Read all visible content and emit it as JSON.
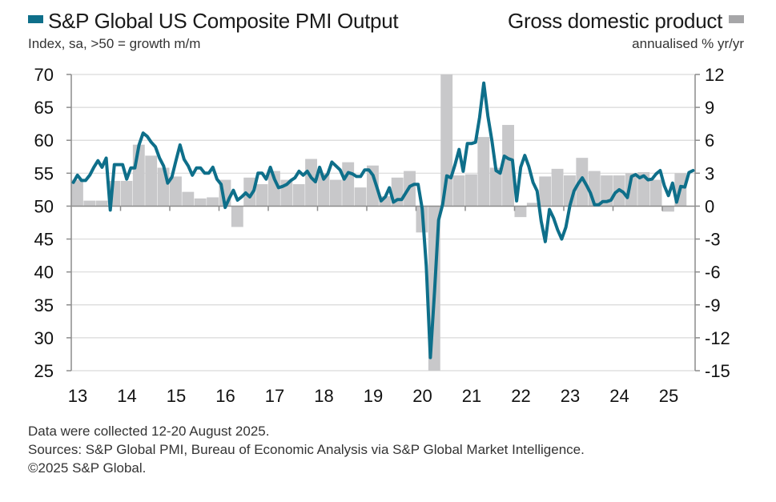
{
  "legend": {
    "pmi_label": "S&P Global US Composite PMI Output",
    "pmi_subtitle": "Index, sa, >50 = growth m/m",
    "gdp_label": "Gross domestic product",
    "gdp_subtitle": "annualised % yr/yr"
  },
  "footer": {
    "line1": "Data were collected 12-20 August 2025.",
    "line2": "Sources: S&P Global PMI, Bureau of Economic Analysis via S&P Global Market Intelligence.",
    "line3": "©2025 S&P Global."
  },
  "colors": {
    "pmi_line": "#0e6f8a",
    "gdp_bar": "#c8c8ca",
    "gdp_legend": "#a6a6a8",
    "grid": "#d9d9d9",
    "axis": "#8c8c8c"
  },
  "chart_data": {
    "type": "line+bar",
    "title": "S&P Global US Composite PMI Output vs Gross domestic product",
    "xlabel": "",
    "x_ticks": [
      "13",
      "14",
      "15",
      "16",
      "17",
      "18",
      "19",
      "20",
      "21",
      "22",
      "23",
      "24",
      "25"
    ],
    "x_range": [
      "2013-01",
      "2025-08"
    ],
    "grid": true,
    "legend_placement": "top",
    "left_axis": {
      "label": "Index, sa, >50 = growth m/m",
      "ylim": [
        25,
        70
      ],
      "ticks": [
        70,
        65,
        60,
        55,
        50,
        45,
        40,
        35,
        30,
        25
      ]
    },
    "right_axis": {
      "label": "annualised % yr/yr",
      "ylim": [
        -15,
        12
      ],
      "ticks": [
        12,
        9,
        6,
        3,
        0,
        -3,
        -6,
        -9,
        -12,
        -15
      ]
    },
    "series": [
      {
        "name": "S&P Global US Composite PMI Output",
        "type": "line",
        "axis": "left",
        "frequency": "monthly",
        "start": "2013-01",
        "values": [
          53.6,
          54.7,
          53.9,
          53.9,
          54.7,
          55.9,
          56.9,
          55.9,
          57.3,
          49.4,
          56.3,
          56.3,
          56.3,
          54.1,
          55.8,
          55.8,
          59.3,
          61.1,
          60.6,
          59.7,
          59.0,
          57.3,
          56.1,
          53.5,
          54.4,
          56.9,
          59.3,
          57.1,
          56.1,
          54.7,
          55.8,
          55.8,
          55.0,
          55.0,
          55.9,
          54.1,
          53.3,
          49.8,
          51.2,
          52.4,
          50.9,
          51.4,
          52.0,
          51.4,
          52.4,
          55.0,
          55.0,
          54.1,
          55.9,
          54.1,
          52.8,
          53.0,
          53.3,
          53.9,
          54.3,
          55.3,
          54.7,
          55.3,
          54.3,
          53.7,
          55.9,
          54.1,
          54.9,
          56.7,
          56.1,
          55.5,
          54.1,
          55.1,
          54.9,
          54.5,
          54.5,
          55.5,
          55.5,
          54.7,
          52.8,
          50.8,
          51.4,
          52.8,
          50.6,
          51.0,
          51.0,
          52.0,
          53.0,
          53.3,
          53.3,
          49.6,
          40.9,
          27.0,
          37.0,
          47.9,
          50.3,
          54.6,
          54.3,
          56.3,
          58.6,
          55.3,
          59.5,
          59.5,
          59.7,
          63.5,
          68.7,
          63.7,
          59.9,
          55.4,
          55.0,
          57.6,
          57.2,
          57.0,
          50.8,
          55.9,
          57.7,
          56.0,
          53.6,
          52.3,
          47.7,
          44.6,
          49.5,
          48.2,
          46.4,
          45.0,
          46.8,
          50.1,
          52.3,
          53.4,
          54.3,
          53.2,
          52.0,
          50.2,
          50.2,
          50.7,
          50.7,
          50.9,
          52.0,
          52.5,
          52.1,
          51.3,
          54.5,
          54.8,
          54.3,
          54.6,
          54.0,
          54.1,
          54.9,
          55.4,
          53.1,
          51.6,
          53.5,
          50.6,
          53.0,
          52.9,
          55.1,
          55.4
        ]
      },
      {
        "name": "Gross domestic product",
        "type": "bar",
        "axis": "right",
        "frequency": "quarterly",
        "start": "2013-Q1",
        "values": [
          2.4,
          0.5,
          0.5,
          2.3,
          2.3,
          5.6,
          4.6,
          3.5,
          2.7,
          1.3,
          0.7,
          0.8,
          2.4,
          -1.9,
          2.6,
          2.0,
          3.2,
          2.4,
          2.0,
          4.3,
          3.0,
          2.4,
          4.0,
          1.7,
          3.7,
          0.9,
          2.6,
          3.2,
          -2.4,
          -15.0,
          12.0,
          2.8,
          2.9,
          6.3,
          3.5,
          7.4,
          -1.0,
          0.3,
          2.7,
          3.4,
          2.8,
          4.4,
          3.2,
          2.8,
          2.8,
          3.0,
          3.1,
          2.4,
          -0.5,
          3.0
        ]
      }
    ]
  }
}
